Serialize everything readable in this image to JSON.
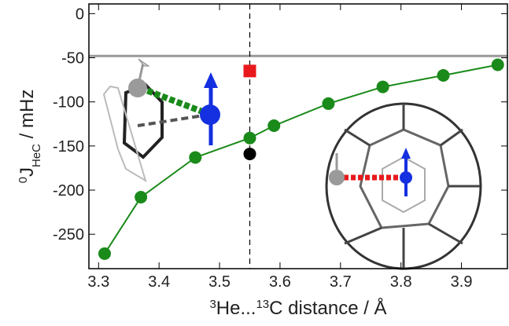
{
  "chart_data": {
    "type": "line",
    "ylabel": {
      "sup": "0",
      "main": "J",
      "sub": "HeC",
      "unit": " / mHz"
    },
    "xlabel": {
      "sup1": "3",
      "part1": "He...",
      "sup2": "13",
      "part2": "C distance / Å"
    },
    "x": [
      3.31,
      3.37,
      3.46,
      3.55,
      3.59,
      3.68,
      3.77,
      3.87,
      3.96
    ],
    "series": [
      {
        "color": "#1a8a1a",
        "values": [
          -272,
          -208,
          -163,
          -141,
          -127,
          -102,
          -83,
          -70,
          -58
        ]
      }
    ],
    "extra_points": [
      {
        "x": 3.55,
        "y": -65,
        "color": "#e8191c",
        "marker": "square"
      },
      {
        "x": 3.55,
        "y": -159,
        "color": "#000000",
        "marker": "circle"
      }
    ],
    "hline": {
      "y": -48,
      "color": "#999999"
    },
    "vline": {
      "x": 3.55,
      "color": "#000000"
    },
    "xlim": [
      3.284,
      3.976
    ],
    "ylim": [
      -289,
      11
    ],
    "xticks": [
      3.3,
      3.4,
      3.5,
      3.6,
      3.7,
      3.8,
      3.9
    ],
    "yticks": [
      -250,
      -200,
      -150,
      -100,
      -50,
      0
    ]
  }
}
